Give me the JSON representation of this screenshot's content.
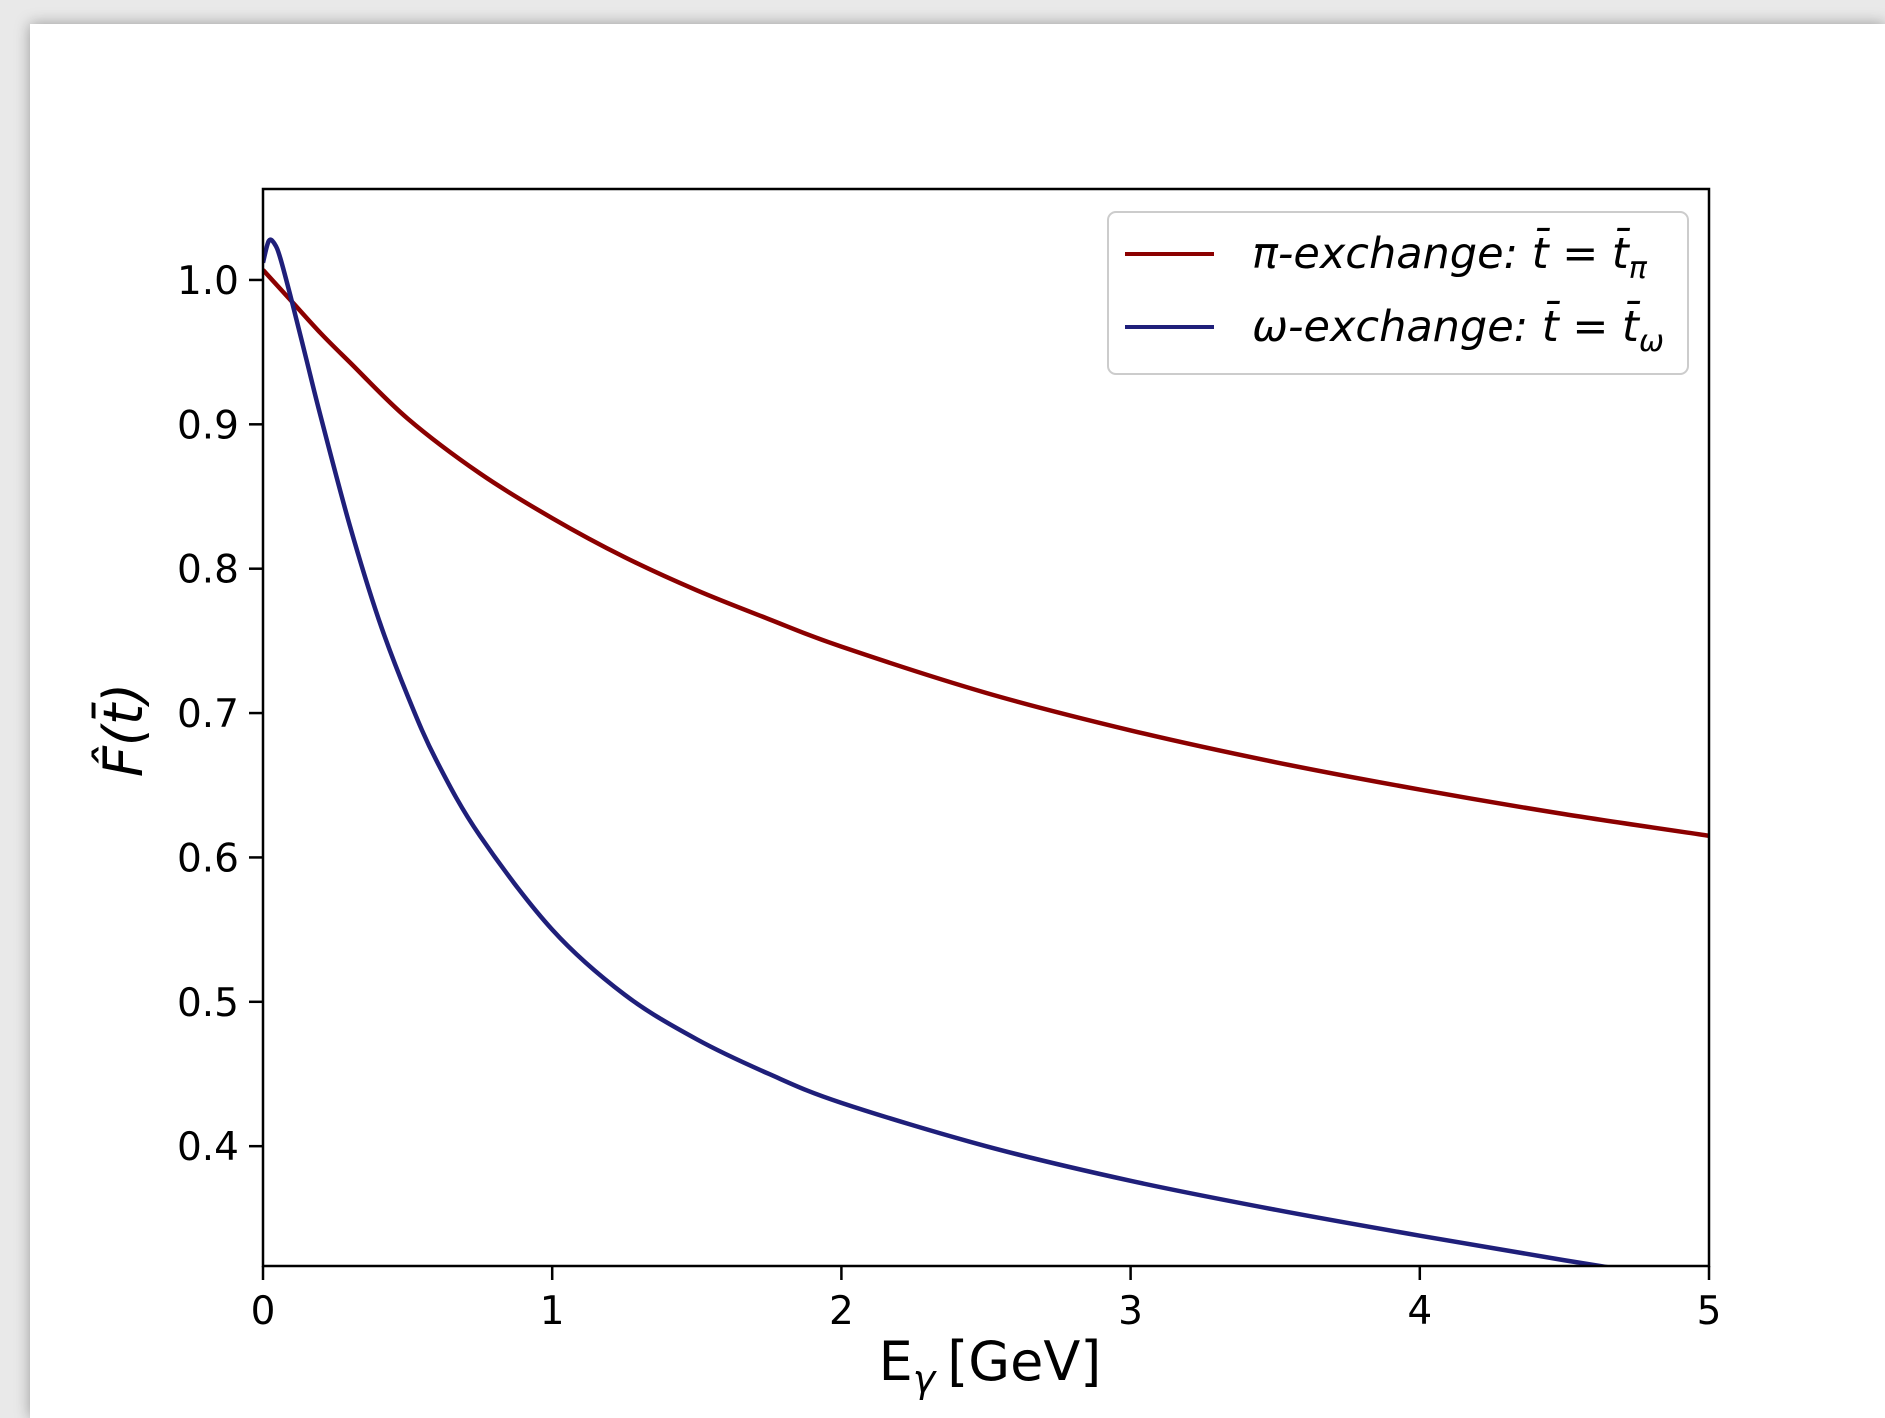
{
  "chart_data": {
    "type": "line",
    "xlabel": "E",
    "xlabel_sub": "γ",
    "xlabel_unit": "[GeV]",
    "ylabel": "F̂(t̄)",
    "xlim": [
      0,
      5
    ],
    "ylim": [
      0.317,
      1.063
    ],
    "xticks": [
      "0",
      "1",
      "2",
      "3",
      "4",
      "5"
    ],
    "yticks": [
      "0.4",
      "0.5",
      "0.6",
      "0.7",
      "0.8",
      "0.9",
      "1.0"
    ],
    "grid": false,
    "legend_position": "top-right",
    "series": [
      {
        "name": "π-exchange: t̄ = t̄π",
        "legend": {
          "main": "π-exchange: t̄ = t̄",
          "sub": "π"
        },
        "color": "#8b0000",
        "x": [
          0,
          0.1,
          0.2,
          0.3,
          0.5,
          0.75,
          1.0,
          1.25,
          1.5,
          1.75,
          2.0,
          2.5,
          3.0,
          3.5,
          4.0,
          4.5,
          5.0
        ],
        "y": [
          1.007,
          0.985,
          0.963,
          0.943,
          0.904,
          0.866,
          0.835,
          0.808,
          0.785,
          0.765,
          0.746,
          0.714,
          0.688,
          0.666,
          0.647,
          0.63,
          0.615
        ]
      },
      {
        "name": "ω-exchange: t̄ = t̄ω",
        "legend": {
          "main": "ω-exchange: t̄ = t̄",
          "sub": "ω"
        },
        "color": "#1f1f7a",
        "x": [
          0,
          0.02,
          0.04,
          0.06,
          0.1,
          0.15,
          0.2,
          0.3,
          0.4,
          0.5,
          0.6,
          0.75,
          1.0,
          1.25,
          1.5,
          1.75,
          2.0,
          2.5,
          3.0,
          3.5,
          4.0,
          4.5,
          5.0
        ],
        "y": [
          1.012,
          1.027,
          1.025,
          1.015,
          0.985,
          0.945,
          0.905,
          0.83,
          0.765,
          0.712,
          0.667,
          0.615,
          0.55,
          0.505,
          0.474,
          0.45,
          0.43,
          0.4,
          0.376,
          0.356,
          0.338,
          0.321,
          0.305
        ]
      }
    ]
  }
}
